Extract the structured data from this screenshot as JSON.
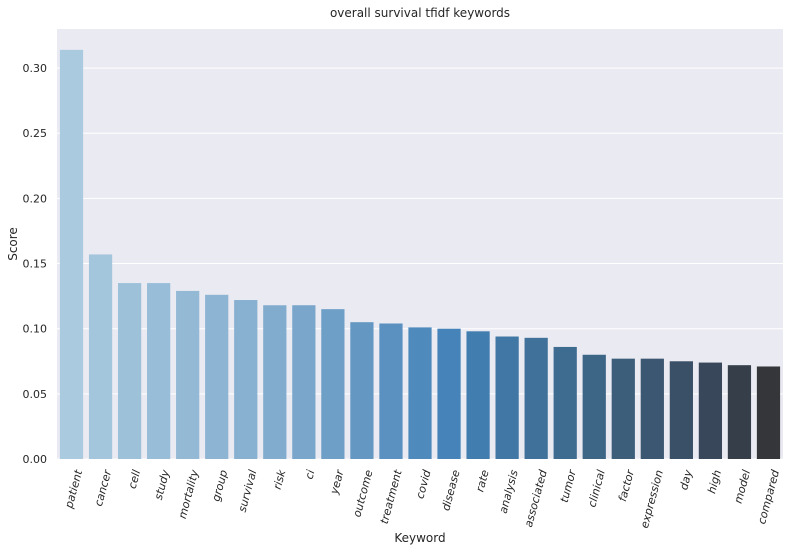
{
  "chart_data": {
    "type": "bar",
    "title": "overall survival tfidf keywords",
    "xlabel": "Keyword",
    "ylabel": "Score",
    "ylim": [
      0,
      0.33
    ],
    "yticks": [
      "0.00",
      "0.05",
      "0.10",
      "0.15",
      "0.20",
      "0.25",
      "0.30"
    ],
    "grid": true,
    "categories": [
      "patient",
      "cancer",
      "cell",
      "study",
      "mortality",
      "group",
      "survival",
      "risk",
      "ci",
      "year",
      "outcome",
      "treatment",
      "covid",
      "disease",
      "rate",
      "analysis",
      "associated",
      "tumor",
      "clinical",
      "factor",
      "expression",
      "day",
      "high",
      "model",
      "compared"
    ],
    "values": [
      0.314,
      0.157,
      0.135,
      0.135,
      0.129,
      0.126,
      0.122,
      0.118,
      0.118,
      0.115,
      0.105,
      0.104,
      0.101,
      0.1,
      0.098,
      0.094,
      0.093,
      0.086,
      0.08,
      0.077,
      0.077,
      0.075,
      0.074,
      0.072,
      0.071
    ],
    "palette": "Blues_d",
    "background": "#eaeaf2",
    "grid_color": "#ffffff"
  }
}
